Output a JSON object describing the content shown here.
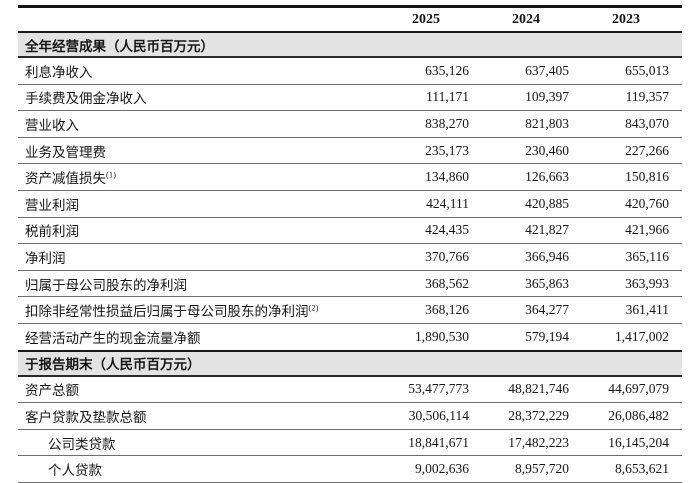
{
  "page": {
    "background_color": "#ffffff",
    "text_color": "#161616"
  },
  "table": {
    "colors": {
      "section_band_background": "#e3e3e3",
      "thick_rule": "#151515",
      "thin_rule": "#6e6e6e"
    },
    "columns": [
      "2025",
      "2024",
      "2023"
    ],
    "sections": [
      {
        "header": "全年经营成果（人民币百万元）",
        "rows": [
          {
            "label": "利息净收入",
            "sup": "",
            "indent": false,
            "values": [
              "635,126",
              "637,405",
              "655,013"
            ]
          },
          {
            "label": "手续费及佣金净收入",
            "sup": "",
            "indent": false,
            "values": [
              "111,171",
              "109,397",
              "119,357"
            ]
          },
          {
            "label": "营业收入",
            "sup": "",
            "indent": false,
            "values": [
              "838,270",
              "821,803",
              "843,070"
            ]
          },
          {
            "label": "业务及管理费",
            "sup": "",
            "indent": false,
            "values": [
              "235,173",
              "230,460",
              "227,266"
            ]
          },
          {
            "label": "资产减值损失",
            "sup": "(1)",
            "indent": false,
            "values": [
              "134,860",
              "126,663",
              "150,816"
            ]
          },
          {
            "label": "营业利润",
            "sup": "",
            "indent": false,
            "values": [
              "424,111",
              "420,885",
              "420,760"
            ]
          },
          {
            "label": "税前利润",
            "sup": "",
            "indent": false,
            "values": [
              "424,435",
              "421,827",
              "421,966"
            ]
          },
          {
            "label": "净利润",
            "sup": "",
            "indent": false,
            "values": [
              "370,766",
              "366,946",
              "365,116"
            ]
          },
          {
            "label": "归属于母公司股东的净利润",
            "sup": "",
            "indent": false,
            "values": [
              "368,562",
              "365,863",
              "363,993"
            ]
          },
          {
            "label": "扣除非经常性损益后归属于母公司股东的净利润",
            "sup": "(2)",
            "indent": false,
            "values": [
              "368,126",
              "364,277",
              "361,411"
            ]
          },
          {
            "label": "经营活动产生的现金流量净额",
            "sup": "",
            "indent": false,
            "values": [
              "1,890,530",
              "579,194",
              "1,417,002"
            ]
          }
        ]
      },
      {
        "header": "于报告期末（人民币百万元）",
        "rows": [
          {
            "label": "资产总额",
            "sup": "",
            "indent": false,
            "values": [
              "53,477,773",
              "48,821,746",
              "44,697,079"
            ]
          },
          {
            "label": "客户贷款及垫款总额",
            "sup": "",
            "indent": false,
            "values": [
              "30,506,114",
              "28,372,229",
              "26,086,482"
            ]
          },
          {
            "label": "公司类贷款",
            "sup": "",
            "indent": true,
            "values": [
              "18,841,671",
              "17,482,223",
              "16,145,204"
            ]
          },
          {
            "label": "个人贷款",
            "sup": "",
            "indent": true,
            "values": [
              "9,002,636",
              "8,957,720",
              "8,653,621"
            ]
          }
        ]
      }
    ]
  }
}
